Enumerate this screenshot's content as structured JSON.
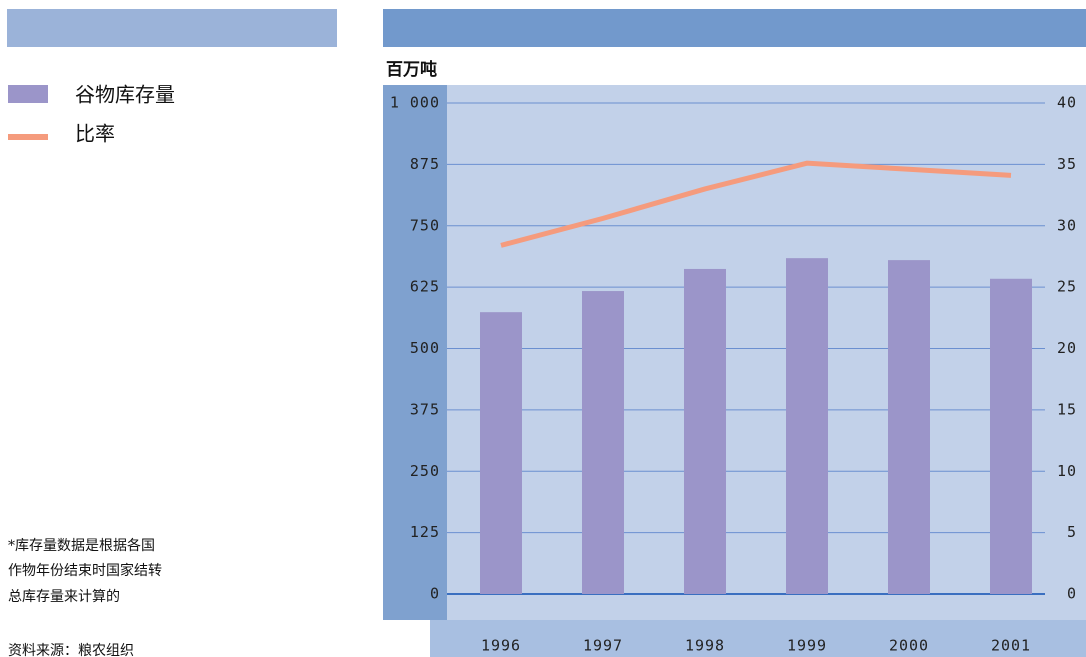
{
  "chart_data": {
    "type": "bar_line",
    "unit_label": "百万吨",
    "categories": [
      "1996",
      "1997",
      "1998",
      "1999",
      "2000",
      "2001"
    ],
    "series": [
      {
        "name": "谷物库存量",
        "color": "#9b95c9",
        "type": "bar",
        "values": [
          574,
          617,
          662,
          684,
          680,
          642
        ]
      },
      {
        "name": "比率",
        "color": "#f59b7d",
        "type": "line",
        "axis": "y2",
        "values": [
          28.4,
          30.6,
          33.0,
          35.1,
          34.6,
          34.1
        ]
      }
    ],
    "ylim": [
      0,
      1000
    ],
    "yticks": [
      0,
      125,
      250,
      375,
      500,
      625,
      750,
      875,
      {
        "value": 1000,
        "label": "1 000"
      }
    ],
    "y2lim": [
      0,
      40
    ],
    "y2ticks": [
      0,
      5,
      10,
      15,
      20,
      25,
      30,
      35,
      40
    ],
    "grid": true,
    "footnote": [
      "*库存量数据是根据各国",
      "作物年份结束时国家结转",
      "总库存量来计算的"
    ],
    "source": "资料来源：粮农组织"
  }
}
